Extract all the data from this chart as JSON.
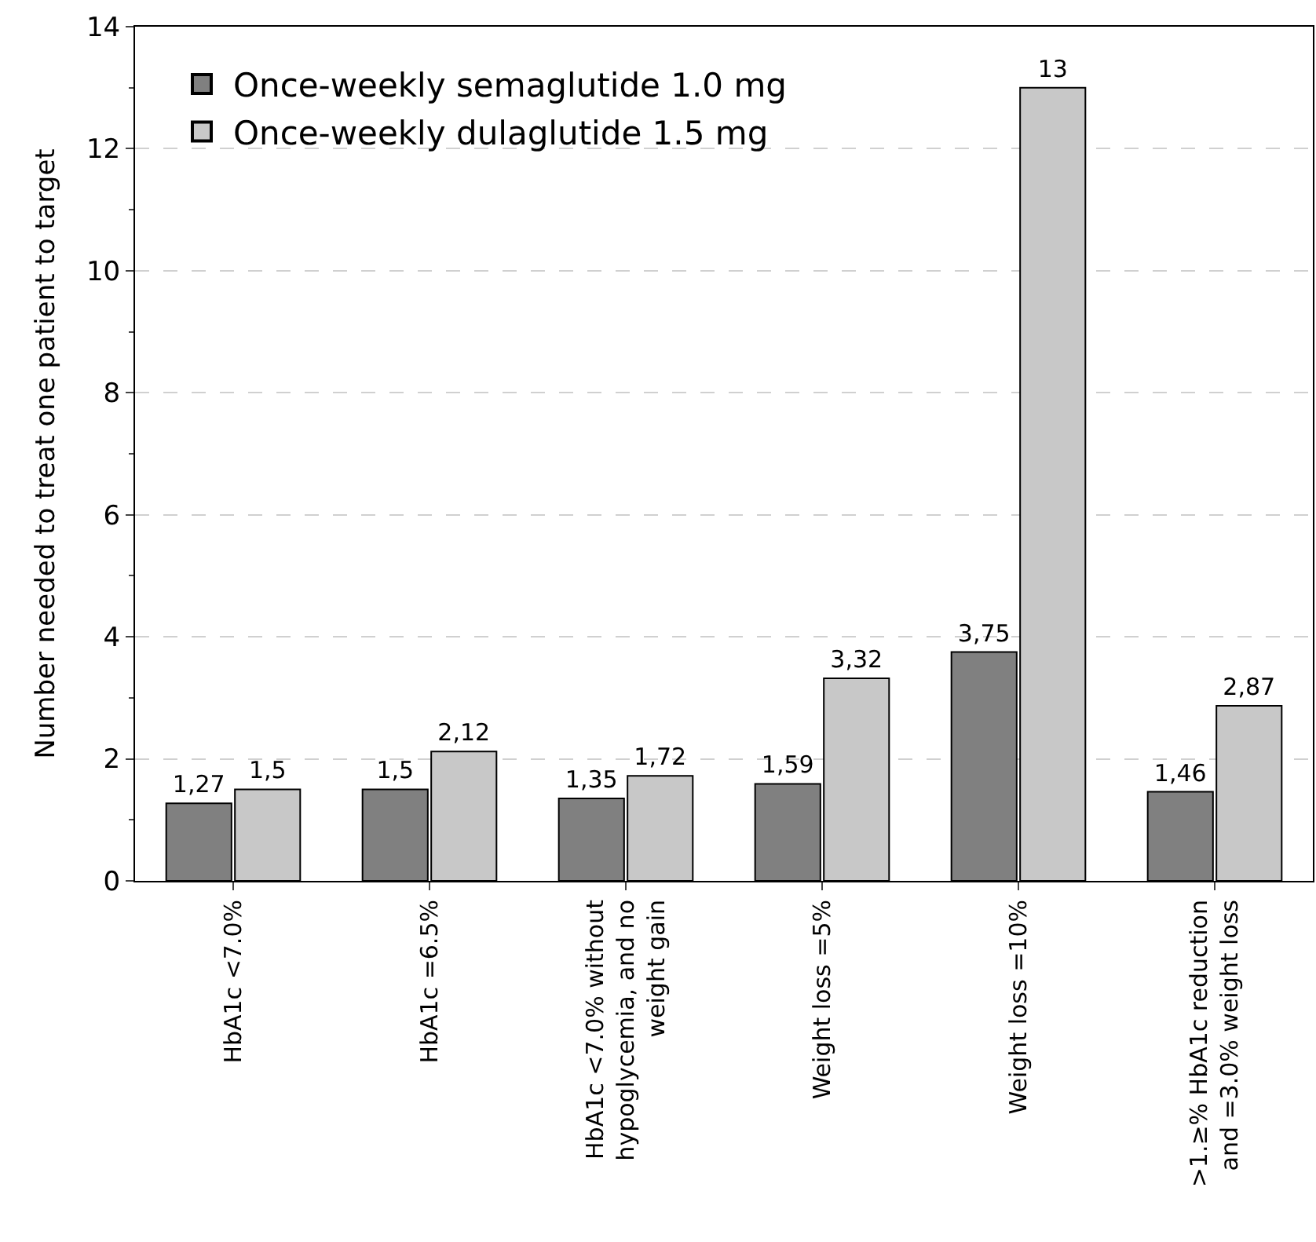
{
  "chart_data": {
    "type": "bar",
    "ylabel": "Number needed to treat one patient to target",
    "categories": [
      "HbA1c <7.0%",
      "HbA1c =6.5%",
      "HbA1c <7.0% without hypoglycemia, and no weight gain",
      "Weight loss =5%",
      "Weight loss =10%",
      ">1.≥% HbA1c reduction and =3.0% weight loss"
    ],
    "series": [
      {
        "name": "Once-weekly semaglutide 1.0 mg",
        "color": "#808080",
        "values": [
          1.27,
          1.5,
          1.35,
          1.59,
          3.75,
          1.46
        ],
        "value_labels": [
          "1,27",
          "1,5",
          "1,35",
          "1,59",
          "3,75",
          "1,46"
        ]
      },
      {
        "name": "Once-weekly dulaglutide 1.5 mg",
        "color": "#c8c8c8",
        "values": [
          1.5,
          2.12,
          1.72,
          3.32,
          13,
          2.87
        ],
        "value_labels": [
          "1,5",
          "2,12",
          "1,72",
          "3,32",
          "13",
          "2,87"
        ]
      }
    ],
    "ylim": [
      0,
      14
    ],
    "yticks": [
      0,
      2,
      4,
      6,
      8,
      10,
      12,
      14
    ],
    "grid": "y",
    "legend": "top left"
  }
}
